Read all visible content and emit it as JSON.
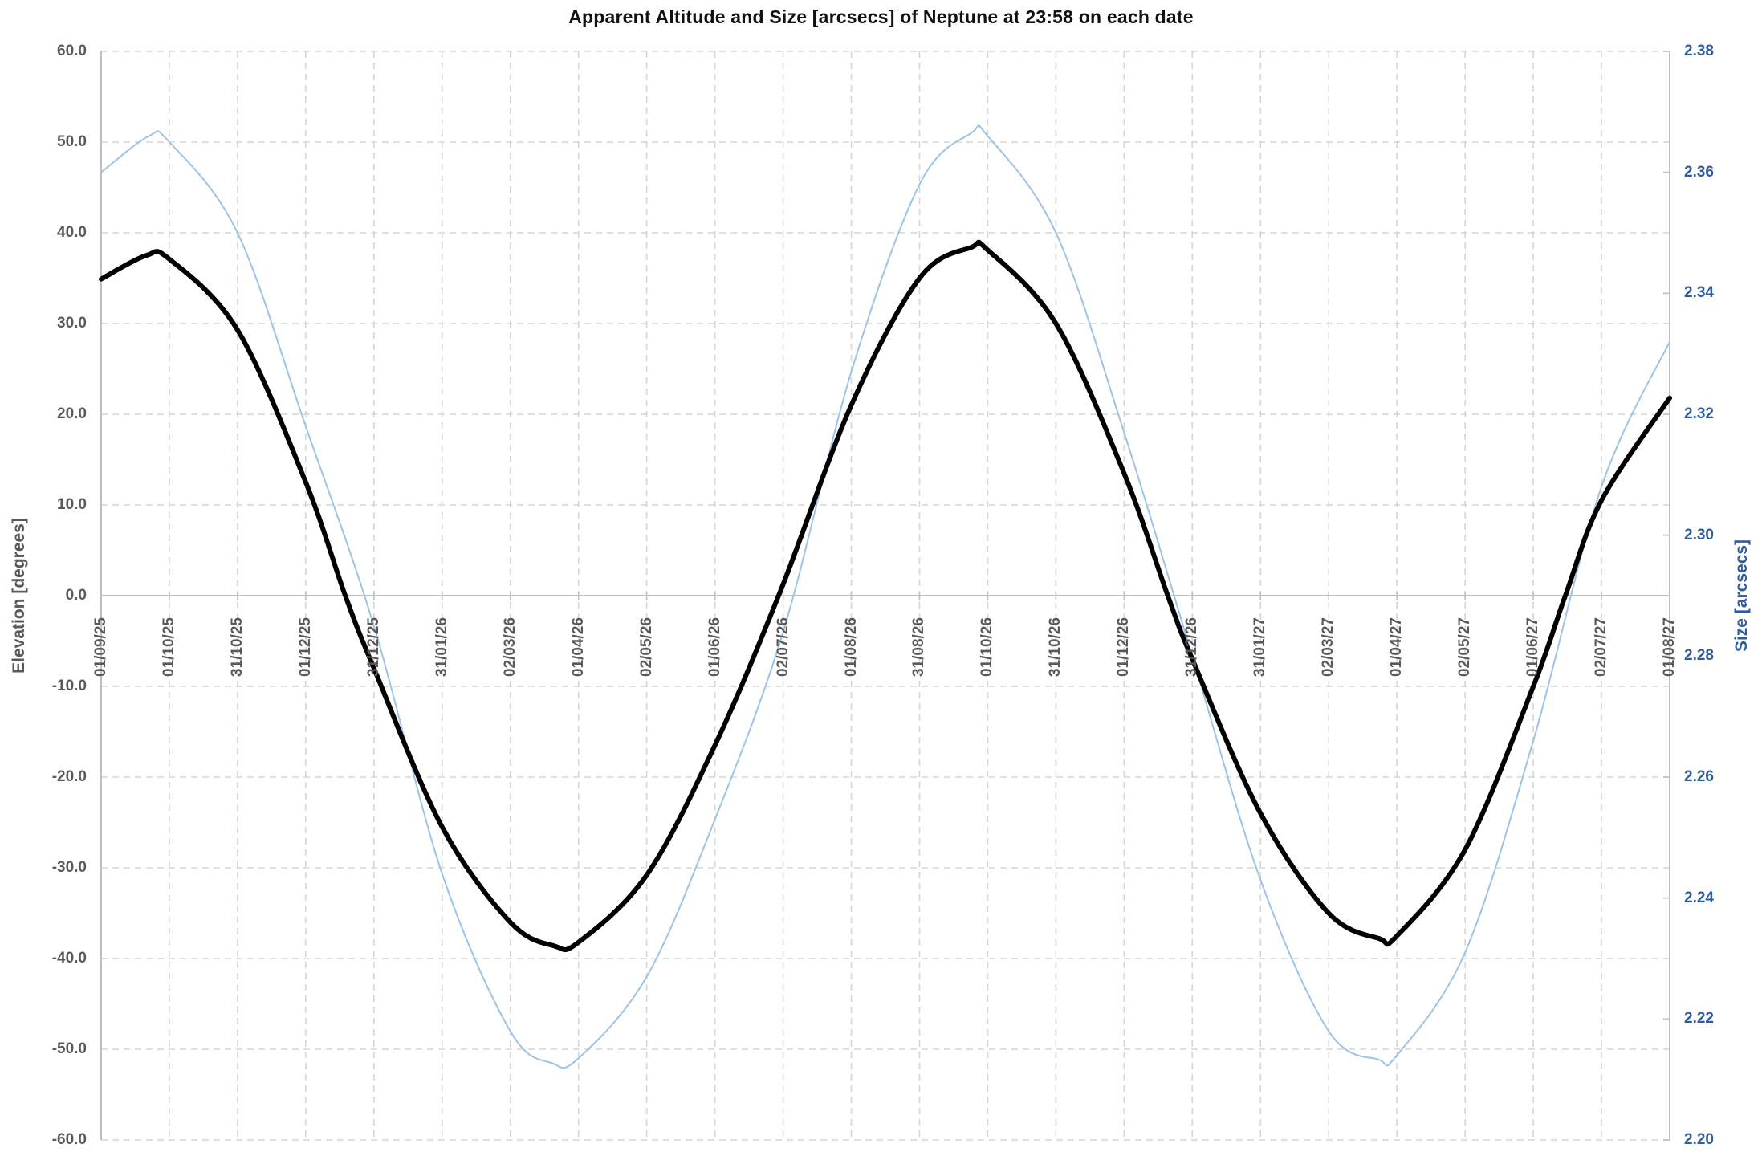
{
  "chart_data": {
    "type": "line",
    "title": "Apparent Altitude and Size [arcsecs] of Neptune at 23:58 on each date",
    "legend": "none",
    "grid": {
      "dash_color": "#D6D6D6",
      "axis_color": "#BFBFBF",
      "zero_line": true
    },
    "x_axis": {
      "label_rotation_degrees": -90,
      "categories": [
        "01/09/25",
        "01/10/25",
        "31/10/25",
        "01/12/25",
        "31/12/25",
        "31/01/26",
        "02/03/26",
        "01/04/26",
        "02/05/26",
        "01/06/26",
        "02/07/26",
        "01/08/26",
        "31/08/26",
        "01/10/26",
        "31/10/26",
        "01/12/26",
        "31/12/26",
        "31/01/27",
        "02/03/27",
        "01/04/27",
        "02/05/27",
        "01/06/27",
        "02/07/27",
        "01/08/27"
      ]
    },
    "y_left": {
      "title": "Elevation [degrees]",
      "min": -60,
      "max": 60,
      "step": 10,
      "tick_labels": [
        "60.0",
        "50.0",
        "40.0",
        "30.0",
        "20.0",
        "10.0",
        "0.0",
        "-10.0",
        "-20.0",
        "-30.0",
        "-40.0",
        "-50.0",
        "-60.0"
      ],
      "text_color": "#595959"
    },
    "y_right": {
      "title": "Size [arcsecs]",
      "min": 2.2,
      "max": 2.38,
      "step": 0.02,
      "tick_labels": [
        "2.38",
        "2.36",
        "2.34",
        "2.32",
        "2.30",
        "2.28",
        "2.26",
        "2.24",
        "2.22",
        "2.20"
      ],
      "text_color": "#2E5B9E"
    },
    "series": [
      {
        "name": "Elevation [degrees]",
        "axis": "left",
        "color": "#000000",
        "stroke_width": 6,
        "points": [
          [
            0,
            34.9
          ],
          [
            0.66,
            37.5
          ],
          [
            1,
            37.1
          ],
          [
            2,
            29.3
          ],
          [
            3,
            12.5
          ],
          [
            3.58,
            0
          ],
          [
            4,
            -8
          ],
          [
            5,
            -25.5
          ],
          [
            6,
            -36
          ],
          [
            6.64,
            -38.6
          ],
          [
            7,
            -38.2
          ],
          [
            8,
            -30.8
          ],
          [
            9,
            -16.5
          ],
          [
            9.96,
            0.5
          ],
          [
            11,
            21
          ],
          [
            12,
            35
          ],
          [
            12.76,
            38.4
          ],
          [
            13,
            38.1
          ],
          [
            14,
            30
          ],
          [
            15,
            13.5
          ],
          [
            15.64,
            0
          ],
          [
            16,
            -7
          ],
          [
            17,
            -24
          ],
          [
            18,
            -35
          ],
          [
            18.74,
            -37.8
          ],
          [
            19,
            -37.5
          ],
          [
            20,
            -28
          ],
          [
            21,
            -10
          ],
          [
            21.47,
            0
          ],
          [
            22,
            10.5
          ],
          [
            23,
            21.8
          ]
        ]
      },
      {
        "name": "Size [arcsecs]",
        "axis": "right",
        "color": "#9DC3E6",
        "stroke_width": 2,
        "points": [
          [
            0,
            2.36
          ],
          [
            0.7,
            2.366
          ],
          [
            1,
            2.365
          ],
          [
            2,
            2.35
          ],
          [
            3,
            2.318
          ],
          [
            4,
            2.285
          ],
          [
            5,
            2.244
          ],
          [
            6,
            2.218
          ],
          [
            6.61,
            2.2127
          ],
          [
            7,
            2.2135
          ],
          [
            8,
            2.227
          ],
          [
            9,
            2.253
          ],
          [
            10,
            2.284
          ],
          [
            11,
            2.327
          ],
          [
            12,
            2.358
          ],
          [
            12.76,
            2.3665
          ],
          [
            13,
            2.366
          ],
          [
            14,
            2.35
          ],
          [
            15,
            2.317
          ],
          [
            16,
            2.28
          ],
          [
            17,
            2.243
          ],
          [
            18,
            2.218
          ],
          [
            18.73,
            2.2133
          ],
          [
            19,
            2.214
          ],
          [
            20,
            2.231
          ],
          [
            21,
            2.266
          ],
          [
            22,
            2.308
          ],
          [
            23,
            2.332
          ]
        ]
      }
    ]
  }
}
